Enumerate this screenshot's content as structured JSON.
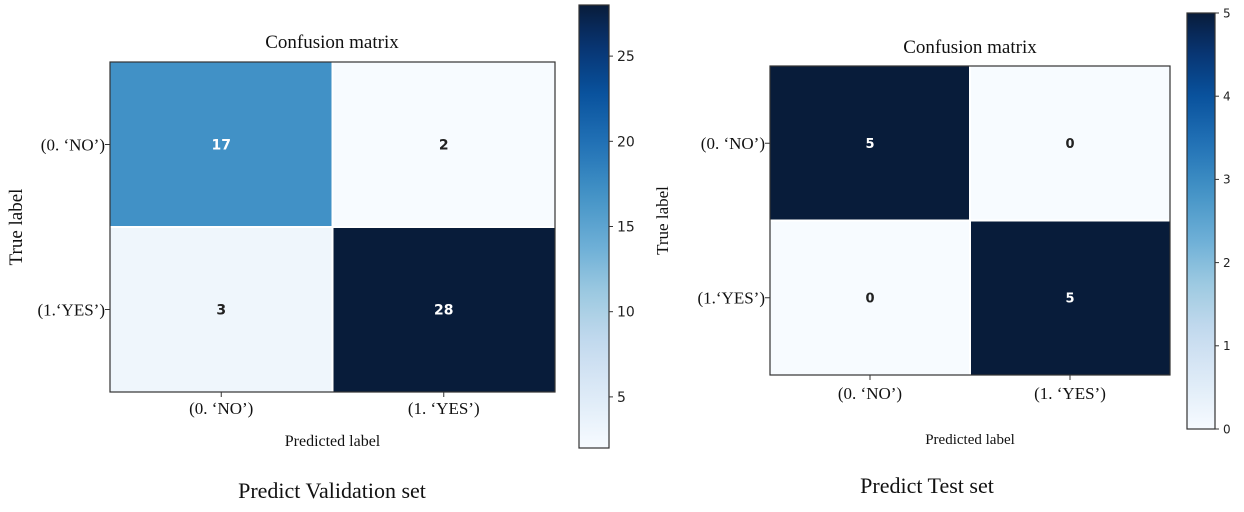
{
  "chart_data": [
    {
      "type": "heatmap",
      "title": "Confusion matrix",
      "xlabel": "Predicted label",
      "ylabel": "True label",
      "x_categories": [
        "(0. ‘NO’)",
        "(1. ‘YES’)"
      ],
      "y_categories": [
        "(0. ‘NO’)",
        "(1.‘YES’)"
      ],
      "values": [
        [
          17,
          2
        ],
        [
          3,
          28
        ]
      ],
      "colorbar": {
        "min": 2,
        "max": 28,
        "ticks": [
          5,
          10,
          15,
          20,
          25
        ],
        "colormap": "Blues"
      },
      "caption": "Predict Validation set"
    },
    {
      "type": "heatmap",
      "title": "Confusion matrix",
      "xlabel": "Predicted label",
      "ylabel": "True label",
      "x_categories": [
        "(0. ‘NO’)",
        "(1. ‘YES’)"
      ],
      "y_categories": [
        "(0. ‘NO’)",
        "(1.‘YES’)"
      ],
      "values": [
        [
          5,
          0
        ],
        [
          0,
          5
        ]
      ],
      "colorbar": {
        "min": 0,
        "max": 5,
        "ticks": [
          0,
          1,
          2,
          3,
          4,
          5
        ],
        "colormap": "Blues"
      },
      "caption": "Predict Test set"
    }
  ]
}
